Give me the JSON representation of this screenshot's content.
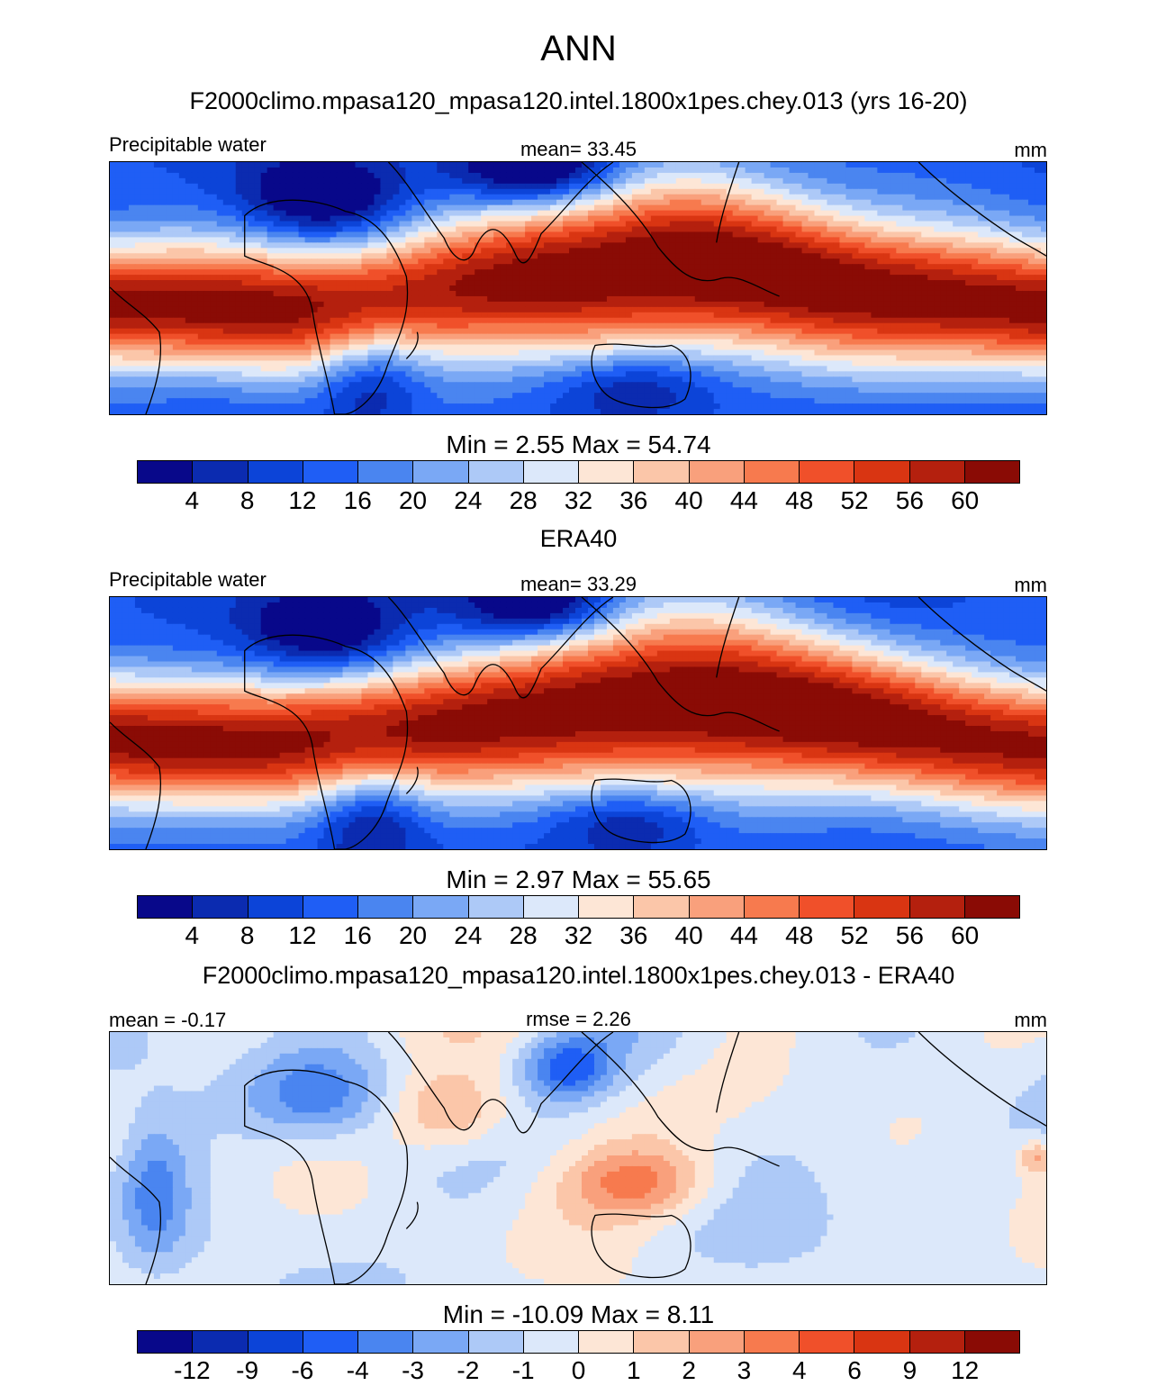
{
  "page_title": "ANN",
  "colors": [
    "#08088a",
    "#0b2bb0",
    "#0c44d8",
    "#1f5ef5",
    "#4a85f0",
    "#7aa8f5",
    "#adc9f7",
    "#dce8fa",
    "#fde6d6",
    "#fbc6a9",
    "#f9a07c",
    "#f77a4e",
    "#f0502a",
    "#d93512",
    "#b4200e",
    "#8a0b05"
  ],
  "panels": [
    {
      "case_title": "F2000climo.mpasa120_mpasa120.intel.1800x1pes.chey.013 (yrs 16-20)",
      "left_label": "Precipitable water",
      "center_label": "mean=  33.45",
      "units": "mm",
      "minmax": "Min =   2.55 Max =  54.74",
      "kind": "field"
    },
    {
      "case_title": "ERA40",
      "left_label": "Precipitable water",
      "center_label": "mean=  33.29",
      "units": "mm",
      "minmax": "Min =   2.97 Max =  55.65",
      "kind": "field"
    },
    {
      "case_title": "F2000climo.mpasa120_mpasa120.intel.1800x1pes.chey.013 - ERA40",
      "left_label": "mean =  -0.17",
      "center_label": "rmse =   2.26",
      "units": "mm",
      "minmax": "Min = -10.09 Max =   8.11",
      "kind": "diff"
    }
  ],
  "chart_data": [
    {
      "type": "heatmap",
      "title": "F2000climo.mpasa120_mpasa120.intel.1800x1pes.chey.013 (yrs 16-20)",
      "variable": "Precipitable water",
      "units": "mm",
      "mean": 33.45,
      "min": 2.55,
      "max": 54.74,
      "colorbar_levels": [
        "4",
        "8",
        "12",
        "16",
        "20",
        "24",
        "28",
        "32",
        "36",
        "40",
        "44",
        "48",
        "52",
        "56",
        "60"
      ]
    },
    {
      "type": "heatmap",
      "title": "ERA40",
      "variable": "Precipitable water",
      "units": "mm",
      "mean": 33.29,
      "min": 2.97,
      "max": 55.65,
      "colorbar_levels": [
        "4",
        "8",
        "12",
        "16",
        "20",
        "24",
        "28",
        "32",
        "36",
        "40",
        "44",
        "48",
        "52",
        "56",
        "60"
      ]
    },
    {
      "type": "heatmap",
      "title": "F2000climo.mpasa120_mpasa120.intel.1800x1pes.chey.013 - ERA40",
      "units": "mm",
      "mean": -0.17,
      "rmse": 2.26,
      "min": -10.09,
      "max": 8.11,
      "colorbar_levels": [
        "-12",
        "-9",
        "-6",
        "-4",
        "-3",
        "-2",
        "-1",
        "0",
        "1",
        "2",
        "3",
        "4",
        "6",
        "9",
        "12"
      ]
    }
  ]
}
